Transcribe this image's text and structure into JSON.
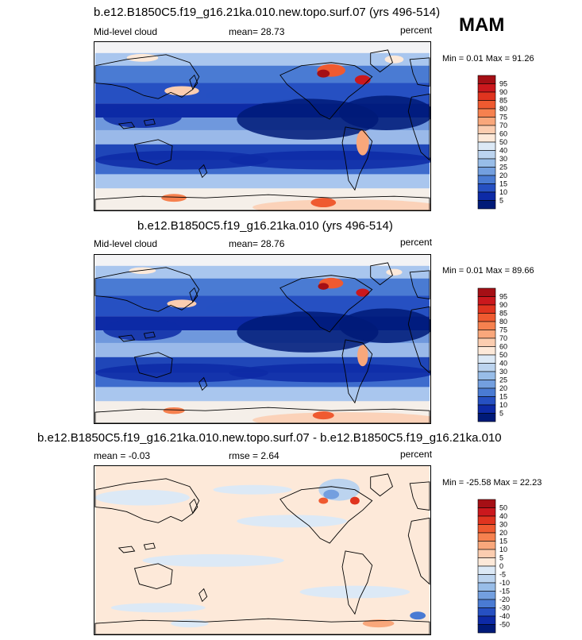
{
  "season": "MAM",
  "panels": [
    {
      "title": "b.e12.B1850C5.f19_g16.21ka.010.new.topo.surf.07 (yrs 496-514)",
      "left_label": "Mid-level cloud",
      "mean_text": "mean=  28.73",
      "units": "percent",
      "minmax": "Min =  0.01 Max =  91.26",
      "scale": "abs"
    },
    {
      "title": "b.e12.B1850C5.f19_g16.21ka.010 (yrs 496-514)",
      "left_label": "Mid-level cloud",
      "mean_text": "mean=  28.76",
      "units": "percent",
      "minmax": "Min =  0.01 Max =  89.66",
      "scale": "abs"
    },
    {
      "title": "b.e12.B1850C5.f19_g16.21ka.010.new.topo.surf.07 - b.e12.B1850C5.f19_g16.21ka.010",
      "left_label": "mean =  -0.03",
      "mean_text": "rmse =   2.64",
      "units": "percent",
      "minmax": "Min = -25.58 Max =  22.23",
      "scale": "diff"
    }
  ],
  "colorbars": {
    "abs": {
      "labels": [
        "95",
        "90",
        "85",
        "80",
        "75",
        "70",
        "60",
        "50",
        "40",
        "30",
        "25",
        "20",
        "15",
        "10",
        "5"
      ],
      "colors": [
        "#a50f15",
        "#cb181d",
        "#e0341f",
        "#ef5a30",
        "#f6814f",
        "#f9a77b",
        "#fbcdb0",
        "#fde9d9",
        "#dce9f6",
        "#bcd4ef",
        "#98bde8",
        "#739fdf",
        "#4a7bd3",
        "#2650c2",
        "#0d2aa6",
        "#001a78"
      ]
    },
    "diff": {
      "labels": [
        "50",
        "40",
        "30",
        "20",
        "15",
        "10",
        "5",
        "0",
        "-5",
        "-10",
        "-15",
        "-20",
        "-30",
        "-40",
        "-50"
      ],
      "colors": [
        "#a50f15",
        "#cb181d",
        "#e0341f",
        "#ef5a30",
        "#f6814f",
        "#f9a77b",
        "#fbcdb0",
        "#fde9d9",
        "#dce9f6",
        "#bcd4ef",
        "#98bde8",
        "#739fdf",
        "#4a7bd3",
        "#2650c2",
        "#0d2aa6",
        "#001a78"
      ]
    }
  },
  "chart_data": [
    {
      "type": "heatmap",
      "title": "b.e12.B1850C5.f19_g16.21ka.010.new.topo.surf.07 (yrs 496-514)",
      "variable": "Mid-level cloud",
      "season": "MAM",
      "units": "percent",
      "mean": 28.73,
      "min": 0.01,
      "max": 91.26,
      "levels": [
        5,
        10,
        15,
        20,
        25,
        30,
        40,
        50,
        60,
        70,
        75,
        80,
        85,
        90,
        95
      ]
    },
    {
      "type": "heatmap",
      "title": "b.e12.B1850C5.f19_g16.21ka.010 (yrs 496-514)",
      "variable": "Mid-level cloud",
      "season": "MAM",
      "units": "percent",
      "mean": 28.76,
      "min": 0.01,
      "max": 89.66,
      "levels": [
        5,
        10,
        15,
        20,
        25,
        30,
        40,
        50,
        60,
        70,
        75,
        80,
        85,
        90,
        95
      ]
    },
    {
      "type": "heatmap",
      "title": "b.e12.B1850C5.f19_g16.21ka.010.new.topo.surf.07 - b.e12.B1850C5.f19_g16.21ka.010",
      "season": "MAM",
      "units": "percent",
      "mean": -0.03,
      "rmse": 2.64,
      "min": -25.58,
      "max": 22.23,
      "levels": [
        -50,
        -40,
        -30,
        -20,
        -15,
        -10,
        -5,
        0,
        5,
        10,
        15,
        20,
        30,
        40,
        50
      ]
    }
  ]
}
